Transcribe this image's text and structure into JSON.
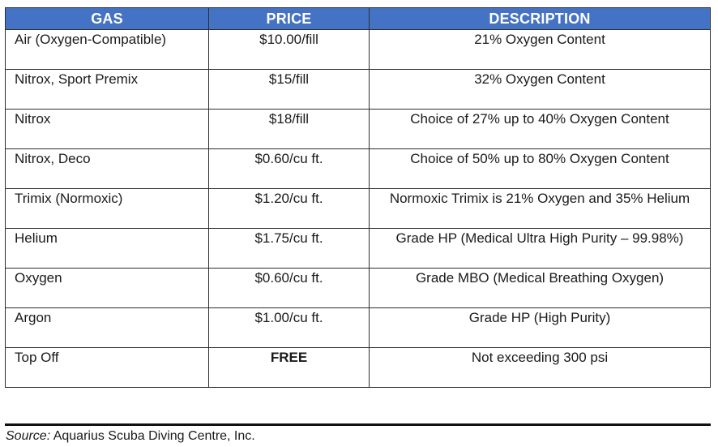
{
  "table": {
    "headers": [
      "GAS",
      "PRICE",
      "DESCRIPTION"
    ],
    "rows": [
      {
        "gas": "Air (Oxygen-Compatible)",
        "price": "$10.00/fill",
        "description": "21% Oxygen Content"
      },
      {
        "gas": "Nitrox, Sport Premix",
        "price": "$15/fill",
        "description": "32% Oxygen Content"
      },
      {
        "gas": "Nitrox",
        "price": "$18/fill",
        "description": "Choice of 27% up to 40% Oxygen Content"
      },
      {
        "gas": "Nitrox, Deco",
        "price": "$0.60/cu ft.",
        "description": "Choice of 50% up to 80% Oxygen Content"
      },
      {
        "gas": "Trimix (Normoxic)",
        "price": "$1.20/cu ft.",
        "description": "Normoxic Trimix is 21% Oxygen and 35% Helium"
      },
      {
        "gas": "Helium",
        "price": "$1.75/cu ft.",
        "description": "Grade HP (Medical Ultra High Purity – 99.98%)"
      },
      {
        "gas": "Oxygen",
        "price": "$0.60/cu ft.",
        "description": "Grade MBO (Medical Breathing Oxygen)"
      },
      {
        "gas": "Argon",
        "price": "$1.00/cu ft.",
        "description": "Grade HP (High Purity)"
      },
      {
        "gas": "Top Off",
        "price": "FREE",
        "description": "Not exceeding 300 psi"
      }
    ]
  },
  "source": {
    "label": "Source:",
    "text": "Aquarius Scuba Diving Centre, Inc."
  },
  "colors": {
    "header_bg": "#4472c4",
    "header_text": "#ffffff"
  }
}
